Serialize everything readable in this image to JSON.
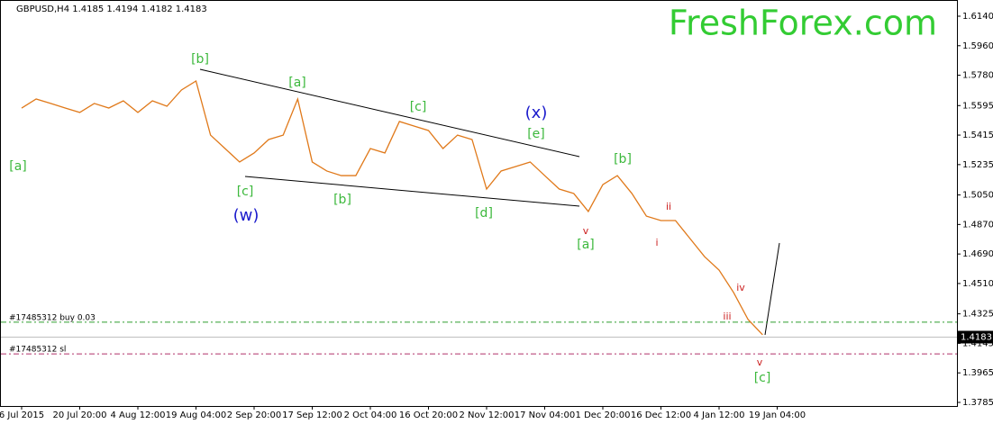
{
  "chart_data": {
    "type": "line",
    "title": "GBPUSD,H4  1.4185 1.4194 1.4182 1.4183",
    "watermark": "FreshForex.com",
    "categories": [
      "6 Jul 2015",
      null,
      null,
      null,
      "20 Jul 20:00",
      null,
      null,
      null,
      "4 Aug 12:00",
      null,
      null,
      null,
      "19 Aug 04:00",
      null,
      null,
      null,
      "2 Sep 20:00",
      null,
      null,
      null,
      "17 Sep 12:00",
      null,
      null,
      null,
      "2 Oct 04:00",
      null,
      null,
      null,
      "16 Oct 20:00",
      null,
      null,
      null,
      "2 Nov 12:00",
      null,
      null,
      null,
      "17 Nov 04:00",
      null,
      null,
      null,
      "1 Dec 20:00",
      null,
      null,
      null,
      "16 Dec 12:00",
      null,
      null,
      null,
      "4 Jan 12:00",
      null,
      null,
      null,
      "19 Jan 04:00",
      null,
      null,
      null,
      null,
      null,
      null,
      null,
      null,
      null,
      null,
      null,
      null
    ],
    "series": [
      {
        "name": "GBPUSD,H4",
        "color": "#e0791a",
        "values": [
          1.558,
          1.5635,
          1.5608,
          1.558,
          1.5553,
          1.5608,
          1.558,
          1.5624,
          1.5553,
          1.5624,
          1.5591,
          1.569,
          1.5745,
          1.5415,
          1.5333,
          1.5251,
          1.5306,
          1.5388,
          1.5415,
          1.5635,
          1.5251,
          1.5196,
          1.5168,
          1.5168,
          1.5333,
          1.5306,
          1.5498,
          1.547,
          1.5443,
          1.5333,
          1.5415,
          1.5388,
          1.5086,
          1.5196,
          1.5223,
          1.5251,
          1.5168,
          1.5086,
          1.5059,
          1.4949,
          1.5113,
          1.5168,
          1.5059,
          1.4921,
          1.4894,
          1.4894,
          1.4784,
          1.4674,
          1.4592,
          1.4455,
          1.429,
          1.4197,
          null,
          null,
          null,
          null,
          null,
          null,
          null,
          null,
          null,
          null,
          null,
          null,
          null
        ]
      }
    ],
    "ylim": [
      1.3785,
      1.614
    ],
    "yticks": [
      {
        "value": 1.614,
        "label": "1.6140"
      },
      {
        "value": 1.596,
        "label": "1.5960"
      },
      {
        "value": 1.578,
        "label": "1.5780"
      },
      {
        "value": 1.5595,
        "label": "1.5595"
      },
      {
        "value": 1.5415,
        "label": "1.5415"
      },
      {
        "value": 1.5235,
        "label": "1.5235"
      },
      {
        "value": 1.505,
        "label": "1.5050"
      },
      {
        "value": 1.487,
        "label": "1.4870"
      },
      {
        "value": 1.469,
        "label": "1.4690"
      },
      {
        "value": 1.451,
        "label": "1.4510"
      },
      1.4325,
      {
        "value": 1.4145,
        "label": "1.4145"
      },
      1.3965,
      1.3785
    ],
    "current_price": 1.4183,
    "order_lines": [
      {
        "label": "#17485312 buy 0.03",
        "price": 1.4274,
        "color": "#2e9e2e"
      },
      {
        "label": "#17485312 sl",
        "price": 1.4081,
        "color": "#b0306a"
      }
    ],
    "annotations": [
      {
        "text": "[a]",
        "color": "#3cb83c"
      },
      {
        "text": "[b]",
        "color": "#3cb83c"
      },
      {
        "text": "[c]",
        "color": "#3cb83c"
      },
      {
        "text": "(w)",
        "color": "#1a1acc"
      },
      {
        "text": "[a]",
        "color": "#3cb83c"
      },
      {
        "text": "[b]",
        "color": "#3cb83c"
      },
      {
        "text": "[c]",
        "color": "#3cb83c"
      },
      {
        "text": "[d]",
        "color": "#3cb83c"
      },
      {
        "text": "(x)",
        "color": "#1a1acc"
      },
      {
        "text": "[e]",
        "color": "#3cb83c"
      },
      {
        "text": "[b]",
        "color": "#3cb83c"
      },
      {
        "text": "v",
        "color": "#cc2020"
      },
      {
        "text": "[a]",
        "color": "#3cb83c"
      },
      {
        "text": "ii",
        "color": "#cc2020"
      },
      {
        "text": "i",
        "color": "#cc2020"
      },
      {
        "text": "iv",
        "color": "#cc2020"
      },
      {
        "text": "iii",
        "color": "#cc2020"
      },
      {
        "text": "v",
        "color": "#cc2020"
      },
      {
        "text": "[c]",
        "color": "#3cb83c"
      }
    ]
  }
}
